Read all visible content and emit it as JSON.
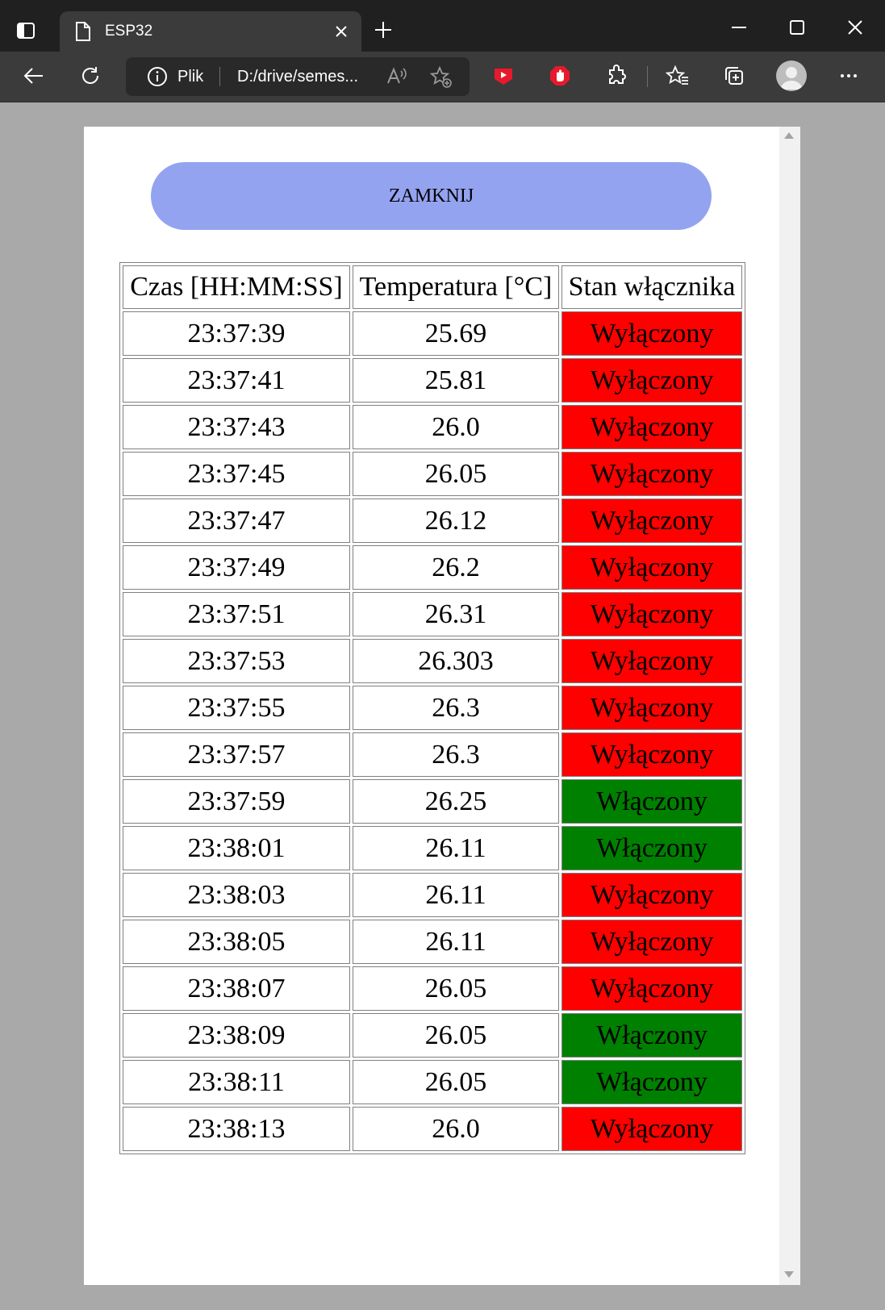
{
  "browser": {
    "tab_title": "ESP32",
    "address": {
      "scheme_label": "Plik",
      "url": "D:/drive/semes..."
    }
  },
  "page": {
    "close_button": "ZAMKNIJ",
    "table": {
      "headers": [
        "Czas [HH:MM:SS]",
        "Temperatura [°C]",
        "Stan włącznika"
      ],
      "rows": [
        {
          "time": "23:37:39",
          "temp": "25.69",
          "state": "Wyłączony",
          "on": false
        },
        {
          "time": "23:37:41",
          "temp": "25.81",
          "state": "Wyłączony",
          "on": false
        },
        {
          "time": "23:37:43",
          "temp": "26.0",
          "state": "Wyłączony",
          "on": false
        },
        {
          "time": "23:37:45",
          "temp": "26.05",
          "state": "Wyłączony",
          "on": false
        },
        {
          "time": "23:37:47",
          "temp": "26.12",
          "state": "Wyłączony",
          "on": false
        },
        {
          "time": "23:37:49",
          "temp": "26.2",
          "state": "Wyłączony",
          "on": false
        },
        {
          "time": "23:37:51",
          "temp": "26.31",
          "state": "Wyłączony",
          "on": false
        },
        {
          "time": "23:37:53",
          "temp": "26.303",
          "state": "Wyłączony",
          "on": false
        },
        {
          "time": "23:37:55",
          "temp": "26.3",
          "state": "Wyłączony",
          "on": false
        },
        {
          "time": "23:37:57",
          "temp": "26.3",
          "state": "Wyłączony",
          "on": false
        },
        {
          "time": "23:37:59",
          "temp": "26.25",
          "state": "Włączony",
          "on": true
        },
        {
          "time": "23:38:01",
          "temp": "26.11",
          "state": "Włączony",
          "on": true
        },
        {
          "time": "23:38:03",
          "temp": "26.11",
          "state": "Wyłączony",
          "on": false
        },
        {
          "time": "23:38:05",
          "temp": "26.11",
          "state": "Wyłączony",
          "on": false
        },
        {
          "time": "23:38:07",
          "temp": "26.05",
          "state": "Wyłączony",
          "on": false
        },
        {
          "time": "23:38:09",
          "temp": "26.05",
          "state": "Włączony",
          "on": true
        },
        {
          "time": "23:38:11",
          "temp": "26.05",
          "state": "Włączony",
          "on": true
        },
        {
          "time": "23:38:13",
          "temp": "26.0",
          "state": "Wyłączony",
          "on": false
        }
      ]
    }
  },
  "colors": {
    "state_on": "#008000",
    "state_off": "#ff0000",
    "button": "#94a3f0"
  }
}
